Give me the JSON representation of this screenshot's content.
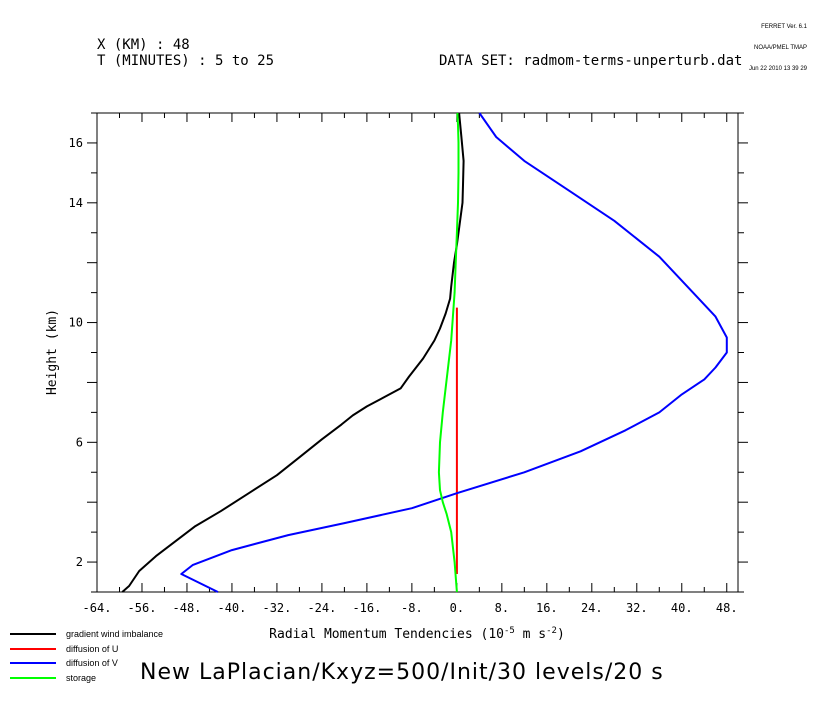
{
  "header": {
    "ferret_lines": [
      "FERRET Ver. 6.1",
      "NOAA/PMEL TMAP",
      "Jun 22 2010 13 39 29"
    ],
    "x_info": "X (KM) : 48",
    "t_info": "T (MINUTES) : 5 to 25",
    "dataset": "DATA SET: radmom-terms-unperturb.dat"
  },
  "caption": "New LaPlacian/Kxyz=500/Init/30 levels/20 s",
  "chart_data": {
    "type": "line",
    "xlabel": "Radial Momentum Tendencies",
    "xlabel_units": "(10",
    "xlabel_exp1": "-5",
    "xlabel_units2": " m s",
    "xlabel_exp2": "-2",
    "xlabel_close": ")",
    "ylabel": "Height (km)",
    "xlim": [
      -64,
      50
    ],
    "ylim": [
      1,
      17
    ],
    "x_ticks": [
      -64,
      -56,
      -48,
      -40,
      -32,
      -24,
      -16,
      -8,
      0,
      8,
      16,
      24,
      32,
      40,
      48
    ],
    "x_tick_labels": [
      "-64.",
      "-56.",
      "-48.",
      "-40.",
      "-32.",
      "-24.",
      "-16.",
      "-8.",
      "0.",
      "8.",
      "16.",
      "24.",
      "32.",
      "40.",
      "48."
    ],
    "y_ticks": [
      2,
      6,
      10,
      14,
      16
    ],
    "y_tick_labels": [
      "2",
      "6",
      "10",
      "14",
      "16"
    ],
    "grid": false,
    "legend_position": "bottom-left outside",
    "series": [
      {
        "name": "gradient wind imbalance",
        "color": "#000000",
        "x": [
          -59.5,
          -58.3,
          -56.5,
          -53.5,
          -50,
          -46.5,
          -42,
          -37,
          -32,
          -28,
          -24,
          -20.5,
          -18.5,
          -16,
          -13,
          -10,
          -8.5,
          -6,
          -4,
          -3,
          -2,
          -1.2,
          -1,
          -0.5,
          0,
          0.5,
          1,
          1.1,
          1.2,
          0.8,
          0.4
        ],
        "y": [
          1,
          1.2,
          1.7,
          2.2,
          2.7,
          3.2,
          3.7,
          4.3,
          4.9,
          5.5,
          6.1,
          6.6,
          6.9,
          7.2,
          7.5,
          7.8,
          8.2,
          8.8,
          9.4,
          9.8,
          10.3,
          10.8,
          11.2,
          12.0,
          12.6,
          13.3,
          14,
          14.6,
          15.4,
          16.2,
          17
        ]
      },
      {
        "name": "diffusion of U",
        "color": "#ff0000",
        "x": [
          0,
          0,
          0,
          0,
          0
        ],
        "y": [
          1.6,
          3,
          6,
          8,
          10.5
        ]
      },
      {
        "name": "diffusion of V",
        "color": "#0000ff",
        "x": [
          -42.5,
          -49,
          -47,
          -40,
          -30,
          -20,
          -8,
          0,
          12,
          22,
          30,
          36,
          40,
          44,
          46,
          48,
          48,
          46,
          42,
          36,
          28,
          20,
          12,
          7,
          4
        ],
        "y": [
          1,
          1.6,
          1.9,
          2.4,
          2.9,
          3.3,
          3.8,
          4.3,
          5.0,
          5.7,
          6.4,
          7.0,
          7.6,
          8.1,
          8.5,
          9.0,
          9.5,
          10.2,
          11.0,
          12.2,
          13.4,
          14.4,
          15.4,
          16.2,
          17
        ]
      },
      {
        "name": "storage",
        "color": "#00ff00",
        "x": [
          0,
          -0.4,
          -1,
          -1.8,
          -2.5,
          -3,
          -3.2,
          -3,
          -2.5,
          -2,
          -1.5,
          -1,
          -0.7,
          -0.4,
          -0.2,
          0,
          0.2,
          0.3,
          0.3,
          0.2,
          0.1
        ],
        "y": [
          1,
          2,
          3,
          3.6,
          4,
          4.4,
          5,
          6,
          7,
          7.8,
          8.6,
          9.4,
          10.2,
          11,
          12,
          13,
          14,
          15,
          16,
          16.6,
          17
        ]
      }
    ]
  }
}
